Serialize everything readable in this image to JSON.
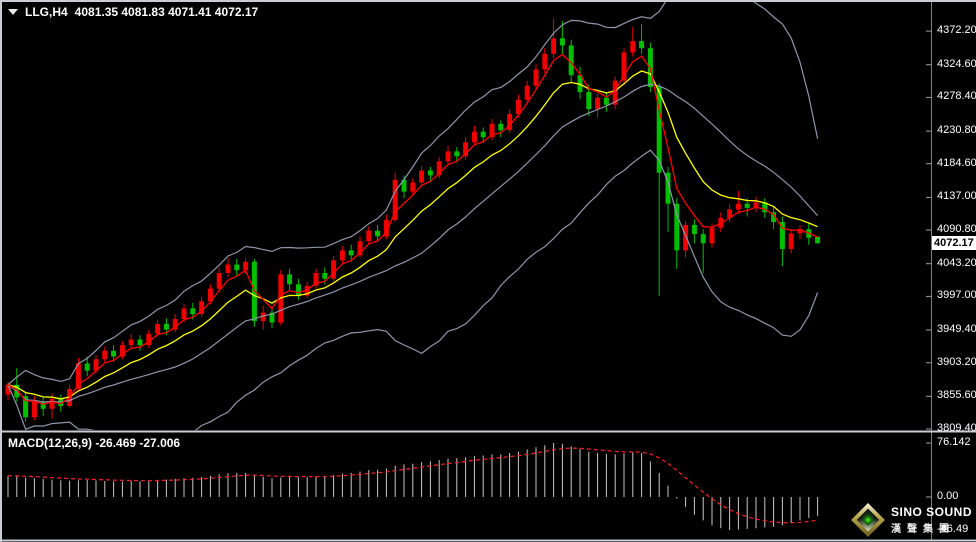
{
  "title": {
    "symbol_period": "LLG,H4",
    "ohlc_text": "4081.35 4081.83 4071.41 4072.17"
  },
  "main_chart": {
    "current_price": "4072.17",
    "price_axis": {
      "labels": [
        {
          "text": "4372.20",
          "value": 4372.2
        },
        {
          "text": "4324.60",
          "value": 4324.6
        },
        {
          "text": "4278.40",
          "value": 4278.4
        },
        {
          "text": "4230.80",
          "value": 4230.8
        },
        {
          "text": "4184.60",
          "value": 4184.6
        },
        {
          "text": "4137.00",
          "value": 4137.0
        },
        {
          "text": "4090.80",
          "value": 4090.8
        },
        {
          "text": "4043.20",
          "value": 4043.2
        },
        {
          "text": "3997.00",
          "value": 3997.0
        },
        {
          "text": "3949.40",
          "value": 3949.4
        },
        {
          "text": "3903.20",
          "value": 3903.2
        },
        {
          "text": "3855.60",
          "value": 3855.6
        },
        {
          "text": "3809.40",
          "value": 3809.4
        }
      ]
    }
  },
  "macd_panel": {
    "label": "MACD(12,26,9) -26.469 -27.006",
    "axis": {
      "labels": [
        {
          "text": "76.142",
          "value": 76.142
        },
        {
          "text": "0.00",
          "value": 0
        },
        {
          "text": "-46.49",
          "value": -46.49
        }
      ]
    }
  },
  "logo": {
    "name": "SINO SOUND",
    "cn": "漢聲集團"
  },
  "chart_data": {
    "type": "candlestick",
    "symbol": "LLG",
    "timeframe": "H4",
    "ohlc_current": {
      "open": 4081.35,
      "high": 4081.83,
      "low": 4071.41,
      "close": 4072.17
    },
    "price_ylim": [
      3808,
      4402
    ],
    "macd_ylim": [
      -60.6,
      88.8
    ],
    "macd_values_text": {
      "macd": -26.469,
      "signal": -27.006
    },
    "indicators": {
      "bollinger": {
        "period": 20,
        "deviation": 2.2,
        "color": "#8f96ad"
      },
      "ma_fast": {
        "period": 4,
        "type": "ema",
        "color": "#ff0000"
      },
      "ma_slow": {
        "period": 10,
        "type": "ema",
        "color": "#ffff00"
      },
      "macd": {
        "fast": 12,
        "slow": 26,
        "signal": 9,
        "bar_color": "#c8c8c8",
        "signal_color": "#ff2020"
      }
    },
    "colors": {
      "background": "#000000",
      "up_candle": "#f00000",
      "down_candle": "#00c000",
      "axis_line": "#808080",
      "axis_text": "#ffffff",
      "frame": "#c9ccd4",
      "price_tag_bg": "#ffffff"
    },
    "candles": [
      [
        3858,
        3876,
        3850,
        3872
      ],
      [
        3872,
        3896,
        3848,
        3854
      ],
      [
        3856,
        3862,
        3820,
        3826
      ],
      [
        3826,
        3856,
        3822,
        3848
      ],
      [
        3848,
        3854,
        3828,
        3838
      ],
      [
        3838,
        3860,
        3824,
        3852
      ],
      [
        3852,
        3858,
        3834,
        3842
      ],
      [
        3842,
        3872,
        3840,
        3866
      ],
      [
        3866,
        3910,
        3862,
        3902
      ],
      [
        3902,
        3912,
        3884,
        3892
      ],
      [
        3892,
        3914,
        3888,
        3908
      ],
      [
        3908,
        3926,
        3902,
        3920
      ],
      [
        3920,
        3928,
        3904,
        3912
      ],
      [
        3912,
        3934,
        3908,
        3928
      ],
      [
        3928,
        3944,
        3922,
        3936
      ],
      [
        3936,
        3942,
        3920,
        3928
      ],
      [
        3928,
        3950,
        3924,
        3944
      ],
      [
        3944,
        3964,
        3940,
        3958
      ],
      [
        3958,
        3966,
        3942,
        3950
      ],
      [
        3950,
        3972,
        3946,
        3965
      ],
      [
        3965,
        3986,
        3960,
        3980
      ],
      [
        3980,
        3988,
        3964,
        3972
      ],
      [
        3972,
        3996,
        3968,
        3990
      ],
      [
        3990,
        4014,
        3986,
        4008
      ],
      [
        4008,
        4038,
        4004,
        4030
      ],
      [
        4030,
        4052,
        4024,
        4042
      ],
      [
        4042,
        4050,
        4026,
        4034
      ],
      [
        4034,
        4052,
        4028,
        4046
      ],
      [
        4046,
        4050,
        3954,
        3962
      ],
      [
        3962,
        3984,
        3950,
        3974
      ],
      [
        3974,
        3982,
        3952,
        3960
      ],
      [
        3960,
        4034,
        3956,
        4028
      ],
      [
        4028,
        4036,
        4006,
        4014
      ],
      [
        4014,
        4022,
        3992,
        3998
      ],
      [
        3998,
        4018,
        3994,
        4012
      ],
      [
        4012,
        4036,
        4008,
        4030
      ],
      [
        4030,
        4038,
        4014,
        4022
      ],
      [
        4022,
        4054,
        4018,
        4048
      ],
      [
        4048,
        4068,
        4044,
        4062
      ],
      [
        4062,
        4070,
        4046,
        4055
      ],
      [
        4055,
        4082,
        4052,
        4075
      ],
      [
        4075,
        4096,
        4070,
        4090
      ],
      [
        4090,
        4098,
        4074,
        4082
      ],
      [
        4082,
        4112,
        4078,
        4105
      ],
      [
        4105,
        4172,
        4102,
        4162
      ],
      [
        4162,
        4168,
        4136,
        4145
      ],
      [
        4145,
        4164,
        4140,
        4158
      ],
      [
        4158,
        4182,
        4152,
        4175
      ],
      [
        4175,
        4180,
        4158,
        4168
      ],
      [
        4168,
        4194,
        4164,
        4188
      ],
      [
        4188,
        4210,
        4184,
        4202
      ],
      [
        4202,
        4208,
        4186,
        4195
      ],
      [
        4195,
        4222,
        4190,
        4215
      ],
      [
        4215,
        4238,
        4210,
        4230
      ],
      [
        4230,
        4236,
        4214,
        4222
      ],
      [
        4222,
        4248,
        4218,
        4241
      ],
      [
        4241,
        4246,
        4222,
        4232
      ],
      [
        4232,
        4262,
        4228,
        4255
      ],
      [
        4255,
        4282,
        4250,
        4275
      ],
      [
        4275,
        4302,
        4270,
        4295
      ],
      [
        4295,
        4326,
        4290,
        4318
      ],
      [
        4318,
        4348,
        4312,
        4340
      ],
      [
        4340,
        4390,
        4334,
        4362
      ],
      [
        4362,
        4386,
        4338,
        4352
      ],
      [
        4352,
        4360,
        4300,
        4310
      ],
      [
        4310,
        4322,
        4276,
        4286
      ],
      [
        4286,
        4296,
        4252,
        4262
      ],
      [
        4262,
        4284,
        4250,
        4278
      ],
      [
        4278,
        4286,
        4258,
        4268
      ],
      [
        4268,
        4308,
        4262,
        4302
      ],
      [
        4302,
        4348,
        4296,
        4342
      ],
      [
        4342,
        4378,
        4336,
        4358
      ],
      [
        4358,
        4382,
        4340,
        4348
      ],
      [
        4348,
        4356,
        4286,
        4293
      ],
      [
        4293,
        4298,
        3998,
        4172
      ],
      [
        4172,
        4180,
        4088,
        4128
      ],
      [
        4128,
        4136,
        4036,
        4062
      ],
      [
        4062,
        4104,
        4052,
        4098
      ],
      [
        4098,
        4106,
        4072,
        4085
      ],
      [
        4085,
        4092,
        4030,
        4072
      ],
      [
        4072,
        4100,
        4066,
        4094
      ],
      [
        4094,
        4116,
        4088,
        4108
      ],
      [
        4108,
        4128,
        4102,
        4120
      ],
      [
        4120,
        4146,
        4114,
        4128
      ],
      [
        4128,
        4136,
        4110,
        4122
      ],
      [
        4122,
        4138,
        4116,
        4130
      ],
      [
        4130,
        4136,
        4108,
        4116
      ],
      [
        4116,
        4124,
        4092,
        4102
      ],
      [
        4102,
        4110,
        4040,
        4064
      ],
      [
        4064,
        4092,
        4058,
        4086
      ],
      [
        4086,
        4098,
        4078,
        4092
      ],
      [
        4092,
        4100,
        4070,
        4080
      ],
      [
        4081.35,
        4081.83,
        4071.41,
        4072.17
      ]
    ],
    "macd": [
      30,
      29,
      27.5,
      26.5,
      25.5,
      24.5,
      23.5,
      23,
      23.5,
      23.8,
      23.2,
      22.6,
      22.2,
      22,
      22.4,
      22,
      23,
      24,
      24.6,
      25.5,
      26.5,
      27,
      28,
      30,
      32,
      33.5,
      34,
      34,
      31.5,
      28.5,
      26.5,
      27.5,
      28.5,
      28,
      28,
      29,
      29.5,
      31,
      33,
      34,
      36,
      38,
      38.5,
      40,
      44,
      46,
      47,
      49,
      50.5,
      52,
      54,
      54.5,
      56,
      58,
      58.5,
      60,
      60.2,
      62,
      64,
      67,
      70,
      73,
      76.142,
      75,
      71.5,
      67.5,
      64,
      62,
      60.5,
      60,
      61.5,
      63,
      62,
      50,
      34,
      16,
      -2,
      -14,
      -25,
      -33,
      -40,
      -44,
      -46.49,
      -46,
      -45,
      -44,
      -43,
      -42,
      -40,
      -37,
      -33,
      -29.5,
      -26.469
    ]
  }
}
